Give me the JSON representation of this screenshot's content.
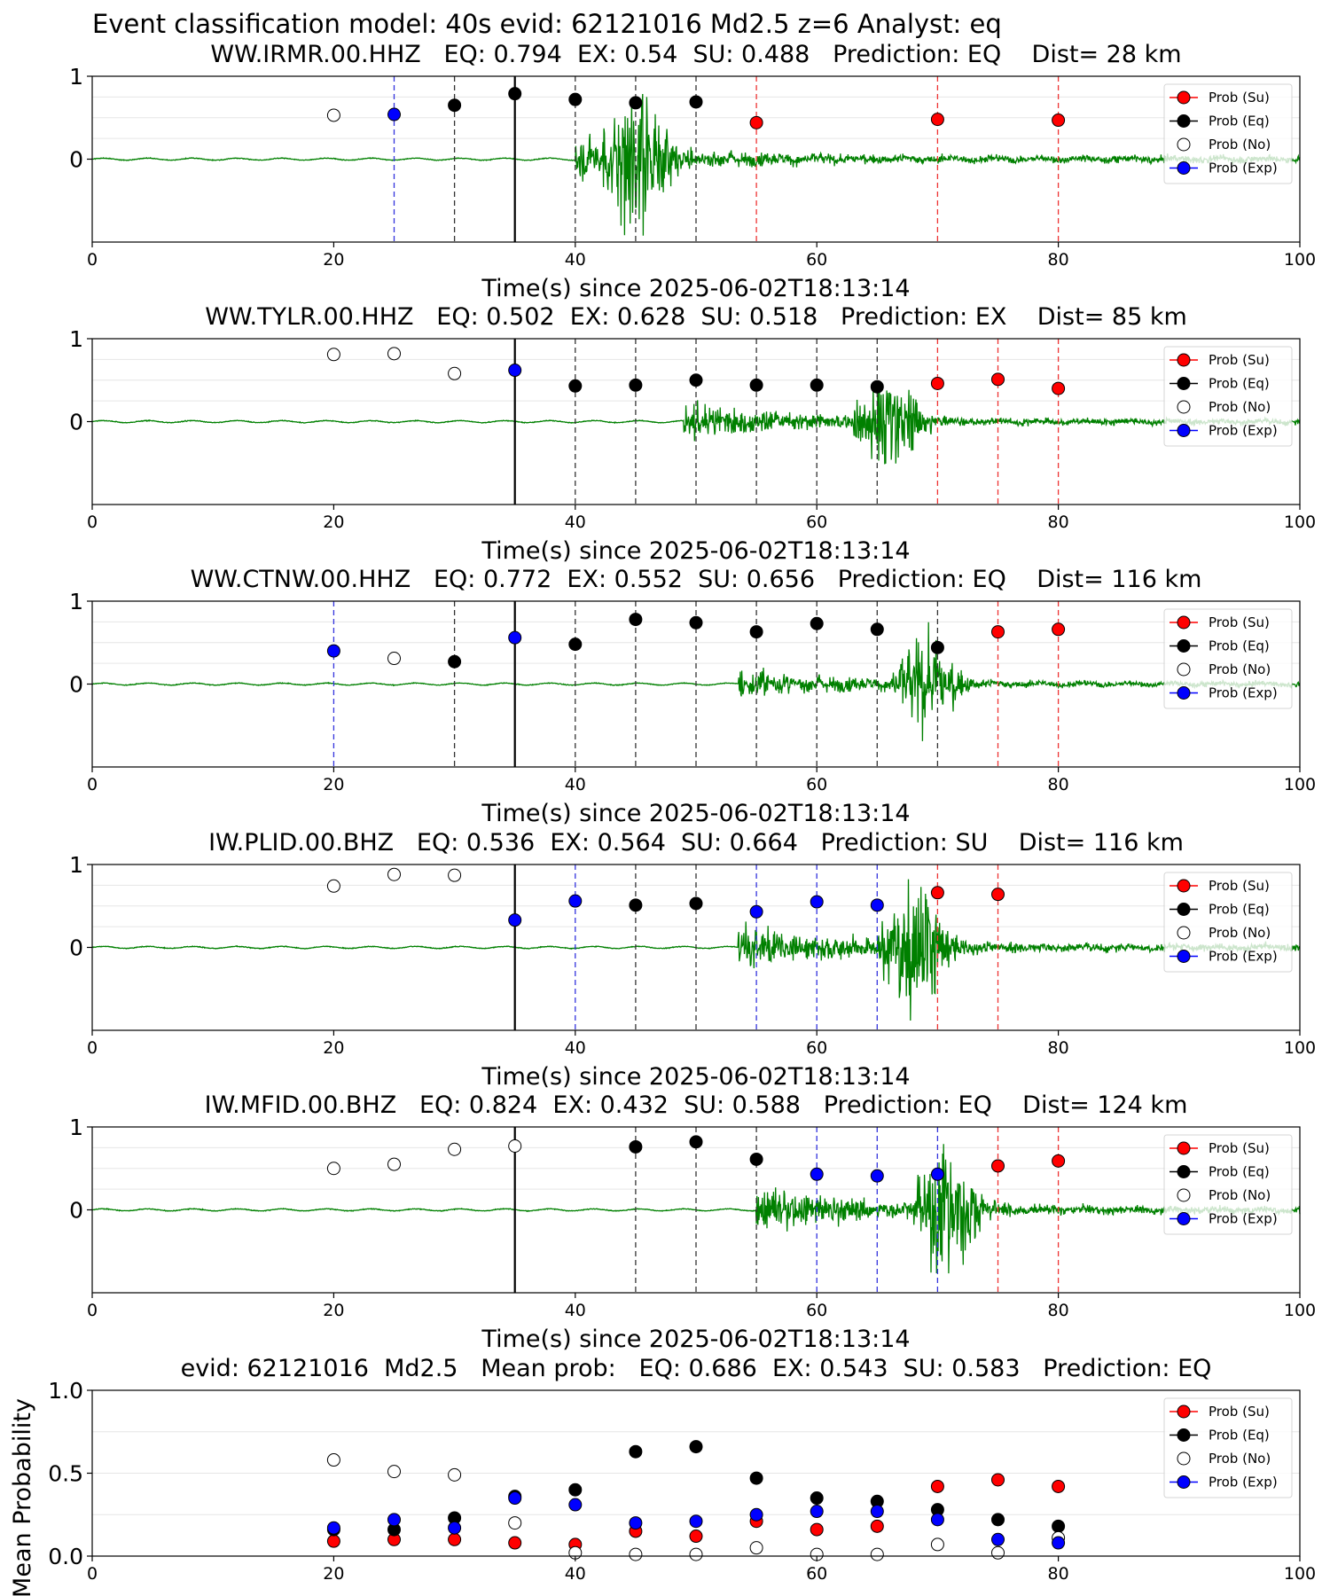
{
  "suptitle": "Event classification model: 40s evid: 62121016 Md2.5 z=6 Analyst: eq",
  "colors": {
    "su": "#ff0000",
    "eq": "#000000",
    "no": "#ffffff",
    "exp": "#0000ff",
    "waveform": "#008000",
    "grid": "#e6e6e6"
  },
  "legend_labels": [
    "Prob (Su)",
    "Prob (Eq)",
    "Prob (No)",
    "Prob (Exp)"
  ],
  "chart_data": [
    {
      "type": "scatter",
      "title": "WW.IRMR.00.HHZ   EQ: 0.794  EX: 0.54  SU: 0.488   Prediction: EQ    Dist= 28 km",
      "xlabel": "Time(s) since 2025-06-02T18:13:14",
      "xlim": [
        0,
        100
      ],
      "xticks": [
        0,
        20,
        40,
        60,
        80,
        100
      ],
      "ylim": [
        -1,
        1
      ],
      "yticks": [
        0,
        1
      ],
      "legend_position": "top-right",
      "origin_time": 35,
      "waveform_onset": 40,
      "waveform_peak_time": 45,
      "waveform_amplitude": 1,
      "windows": [
        {
          "t": 20,
          "class": "no",
          "p": 0.53,
          "line": false
        },
        {
          "t": 25,
          "class": "exp",
          "p": 0.54,
          "line": true
        },
        {
          "t": 30,
          "class": "eq",
          "p": 0.65,
          "line": true
        },
        {
          "t": 35,
          "class": "eq",
          "p": 0.79,
          "line": true
        },
        {
          "t": 40,
          "class": "eq",
          "p": 0.72,
          "line": true
        },
        {
          "t": 45,
          "class": "eq",
          "p": 0.68,
          "line": true
        },
        {
          "t": 50,
          "class": "eq",
          "p": 0.69,
          "line": true
        },
        {
          "t": 55,
          "class": "su",
          "p": 0.44,
          "line": true
        },
        {
          "t": 70,
          "class": "su",
          "p": 0.48,
          "line": true
        },
        {
          "t": 80,
          "class": "su",
          "p": 0.47,
          "line": true
        }
      ]
    },
    {
      "type": "scatter",
      "title": "WW.TYLR.00.HHZ   EQ: 0.502  EX: 0.628  SU: 0.518   Prediction: EX    Dist= 85 km",
      "xlabel": "Time(s) since 2025-06-02T18:13:14",
      "xlim": [
        0,
        100
      ],
      "xticks": [
        0,
        20,
        40,
        60,
        80,
        100
      ],
      "ylim": [
        -1,
        1
      ],
      "yticks": [
        0,
        1
      ],
      "legend_position": "top-right",
      "origin_time": 35,
      "waveform_onset": 49,
      "waveform_peak_time": 66,
      "waveform_amplitude": 0.8,
      "windows": [
        {
          "t": 20,
          "class": "no",
          "p": 0.81,
          "line": false
        },
        {
          "t": 25,
          "class": "no",
          "p": 0.82,
          "line": false
        },
        {
          "t": 30,
          "class": "no",
          "p": 0.58,
          "line": false
        },
        {
          "t": 35,
          "class": "exp",
          "p": 0.62,
          "line": true
        },
        {
          "t": 40,
          "class": "eq",
          "p": 0.43,
          "line": true
        },
        {
          "t": 45,
          "class": "eq",
          "p": 0.44,
          "line": true
        },
        {
          "t": 50,
          "class": "eq",
          "p": 0.5,
          "line": true
        },
        {
          "t": 55,
          "class": "eq",
          "p": 0.44,
          "line": true
        },
        {
          "t": 60,
          "class": "eq",
          "p": 0.44,
          "line": true
        },
        {
          "t": 65,
          "class": "eq",
          "p": 0.42,
          "line": true
        },
        {
          "t": 70,
          "class": "su",
          "p": 0.46,
          "line": true
        },
        {
          "t": 75,
          "class": "su",
          "p": 0.51,
          "line": true
        },
        {
          "t": 80,
          "class": "su",
          "p": 0.4,
          "line": true
        }
      ]
    },
    {
      "type": "scatter",
      "title": "WW.CTNW.00.HHZ   EQ: 0.772  EX: 0.552  SU: 0.656   Prediction: EQ    Dist= 116 km",
      "xlabel": "Time(s) since 2025-06-02T18:13:14",
      "xlim": [
        0,
        100
      ],
      "xticks": [
        0,
        20,
        40,
        60,
        80,
        100
      ],
      "ylim": [
        -1,
        1
      ],
      "yticks": [
        0,
        1
      ],
      "legend_position": "top-right",
      "origin_time": 35,
      "waveform_onset": 53.5,
      "waveform_peak_time": 69,
      "waveform_amplitude": 0.7,
      "windows": [
        {
          "t": 20,
          "class": "exp",
          "p": 0.4,
          "line": true
        },
        {
          "t": 25,
          "class": "no",
          "p": 0.31,
          "line": false
        },
        {
          "t": 30,
          "class": "eq",
          "p": 0.27,
          "line": true
        },
        {
          "t": 35,
          "class": "exp",
          "p": 0.56,
          "line": true
        },
        {
          "t": 40,
          "class": "eq",
          "p": 0.48,
          "line": true
        },
        {
          "t": 45,
          "class": "eq",
          "p": 0.78,
          "line": true
        },
        {
          "t": 50,
          "class": "eq",
          "p": 0.74,
          "line": true
        },
        {
          "t": 55,
          "class": "eq",
          "p": 0.63,
          "line": true
        },
        {
          "t": 60,
          "class": "eq",
          "p": 0.73,
          "line": true
        },
        {
          "t": 65,
          "class": "eq",
          "p": 0.66,
          "line": true
        },
        {
          "t": 70,
          "class": "eq",
          "p": 0.44,
          "line": true
        },
        {
          "t": 75,
          "class": "su",
          "p": 0.63,
          "line": true
        },
        {
          "t": 80,
          "class": "su",
          "p": 0.66,
          "line": true
        }
      ]
    },
    {
      "type": "scatter",
      "title": "IW.PLID.00.BHZ   EQ: 0.536  EX: 0.564  SU: 0.664   Prediction: SU    Dist= 116 km",
      "xlabel": "Time(s) since 2025-06-02T18:13:14",
      "xlim": [
        0,
        100
      ],
      "xticks": [
        0,
        20,
        40,
        60,
        80,
        100
      ],
      "ylim": [
        -1,
        1
      ],
      "yticks": [
        0,
        1
      ],
      "legend_position": "top-right",
      "origin_time": 35,
      "waveform_onset": 53.5,
      "waveform_peak_time": 68,
      "waveform_amplitude": 1,
      "windows": [
        {
          "t": 20,
          "class": "no",
          "p": 0.74,
          "line": false
        },
        {
          "t": 25,
          "class": "no",
          "p": 0.88,
          "line": false
        },
        {
          "t": 30,
          "class": "no",
          "p": 0.87,
          "line": false
        },
        {
          "t": 35,
          "class": "exp",
          "p": 0.33,
          "line": true
        },
        {
          "t": 40,
          "class": "exp",
          "p": 0.56,
          "line": true
        },
        {
          "t": 45,
          "class": "eq",
          "p": 0.51,
          "line": true
        },
        {
          "t": 50,
          "class": "eq",
          "p": 0.53,
          "line": true
        },
        {
          "t": 55,
          "class": "exp",
          "p": 0.43,
          "line": true
        },
        {
          "t": 60,
          "class": "exp",
          "p": 0.55,
          "line": true
        },
        {
          "t": 65,
          "class": "exp",
          "p": 0.51,
          "line": true
        },
        {
          "t": 70,
          "class": "su",
          "p": 0.66,
          "line": true
        },
        {
          "t": 75,
          "class": "su",
          "p": 0.64,
          "line": true
        }
      ]
    },
    {
      "type": "scatter",
      "title": "IW.MFID.00.BHZ   EQ: 0.824  EX: 0.432  SU: 0.588   Prediction: EQ    Dist= 124 km",
      "xlabel": "Time(s) since 2025-06-02T18:13:14",
      "xlim": [
        0,
        100
      ],
      "xticks": [
        0,
        20,
        40,
        60,
        80,
        100
      ],
      "ylim": [
        -1,
        1
      ],
      "yticks": [
        0,
        1
      ],
      "legend_position": "top-right",
      "origin_time": 35,
      "waveform_onset": 55,
      "waveform_peak_time": 71,
      "waveform_amplitude": 1,
      "windows": [
        {
          "t": 20,
          "class": "no",
          "p": 0.5,
          "line": false
        },
        {
          "t": 25,
          "class": "no",
          "p": 0.55,
          "line": false
        },
        {
          "t": 30,
          "class": "no",
          "p": 0.73,
          "line": false
        },
        {
          "t": 35,
          "class": "no",
          "p": 0.77,
          "line": false
        },
        {
          "t": 45,
          "class": "eq",
          "p": 0.76,
          "line": true
        },
        {
          "t": 50,
          "class": "eq",
          "p": 0.82,
          "line": true
        },
        {
          "t": 55,
          "class": "eq",
          "p": 0.61,
          "line": true
        },
        {
          "t": 60,
          "class": "exp",
          "p": 0.43,
          "line": true
        },
        {
          "t": 65,
          "class": "exp",
          "p": 0.41,
          "line": true
        },
        {
          "t": 70,
          "class": "exp",
          "p": 0.43,
          "line": true
        },
        {
          "t": 75,
          "class": "su",
          "p": 0.53,
          "line": true
        },
        {
          "t": 80,
          "class": "su",
          "p": 0.59,
          "line": true
        }
      ]
    },
    {
      "type": "scatter",
      "title": "evid: 62121016  Md2.5   Mean prob:   EQ: 0.686  EX: 0.543  SU: 0.583   Prediction: EQ",
      "xlabel": "",
      "ylabel": "Mean Probability",
      "xlim": [
        0,
        100
      ],
      "xticks": [
        0,
        20,
        40,
        60,
        80,
        100
      ],
      "ylim": [
        0,
        1
      ],
      "yticks": [
        0.0,
        0.5,
        1.0
      ],
      "ytick_labels": [
        "0.0",
        "0.5",
        "1.0"
      ],
      "legend_position": "top-right",
      "x": [
        20,
        25,
        30,
        35,
        40,
        45,
        50,
        55,
        60,
        65,
        70,
        75,
        80
      ],
      "series": [
        {
          "name": "Prob (Su)",
          "class": "su",
          "values": [
            0.09,
            0.1,
            0.1,
            0.08,
            0.07,
            0.15,
            0.12,
            0.21,
            0.16,
            0.18,
            0.42,
            0.46,
            0.42
          ]
        },
        {
          "name": "Prob (Eq)",
          "class": "eq",
          "values": [
            0.16,
            0.16,
            0.23,
            0.36,
            0.4,
            0.63,
            0.66,
            0.47,
            0.35,
            0.33,
            0.28,
            0.22,
            0.18
          ]
        },
        {
          "name": "Prob (No)",
          "class": "no",
          "values": [
            0.58,
            0.51,
            0.49,
            0.2,
            0.02,
            0.01,
            0.01,
            0.05,
            0.01,
            0.01,
            0.07,
            0.02,
            0.11
          ]
        },
        {
          "name": "Prob (Exp)",
          "class": "exp",
          "values": [
            0.17,
            0.22,
            0.17,
            0.35,
            0.31,
            0.2,
            0.21,
            0.25,
            0.27,
            0.27,
            0.22,
            0.1,
            0.08
          ]
        }
      ]
    }
  ]
}
